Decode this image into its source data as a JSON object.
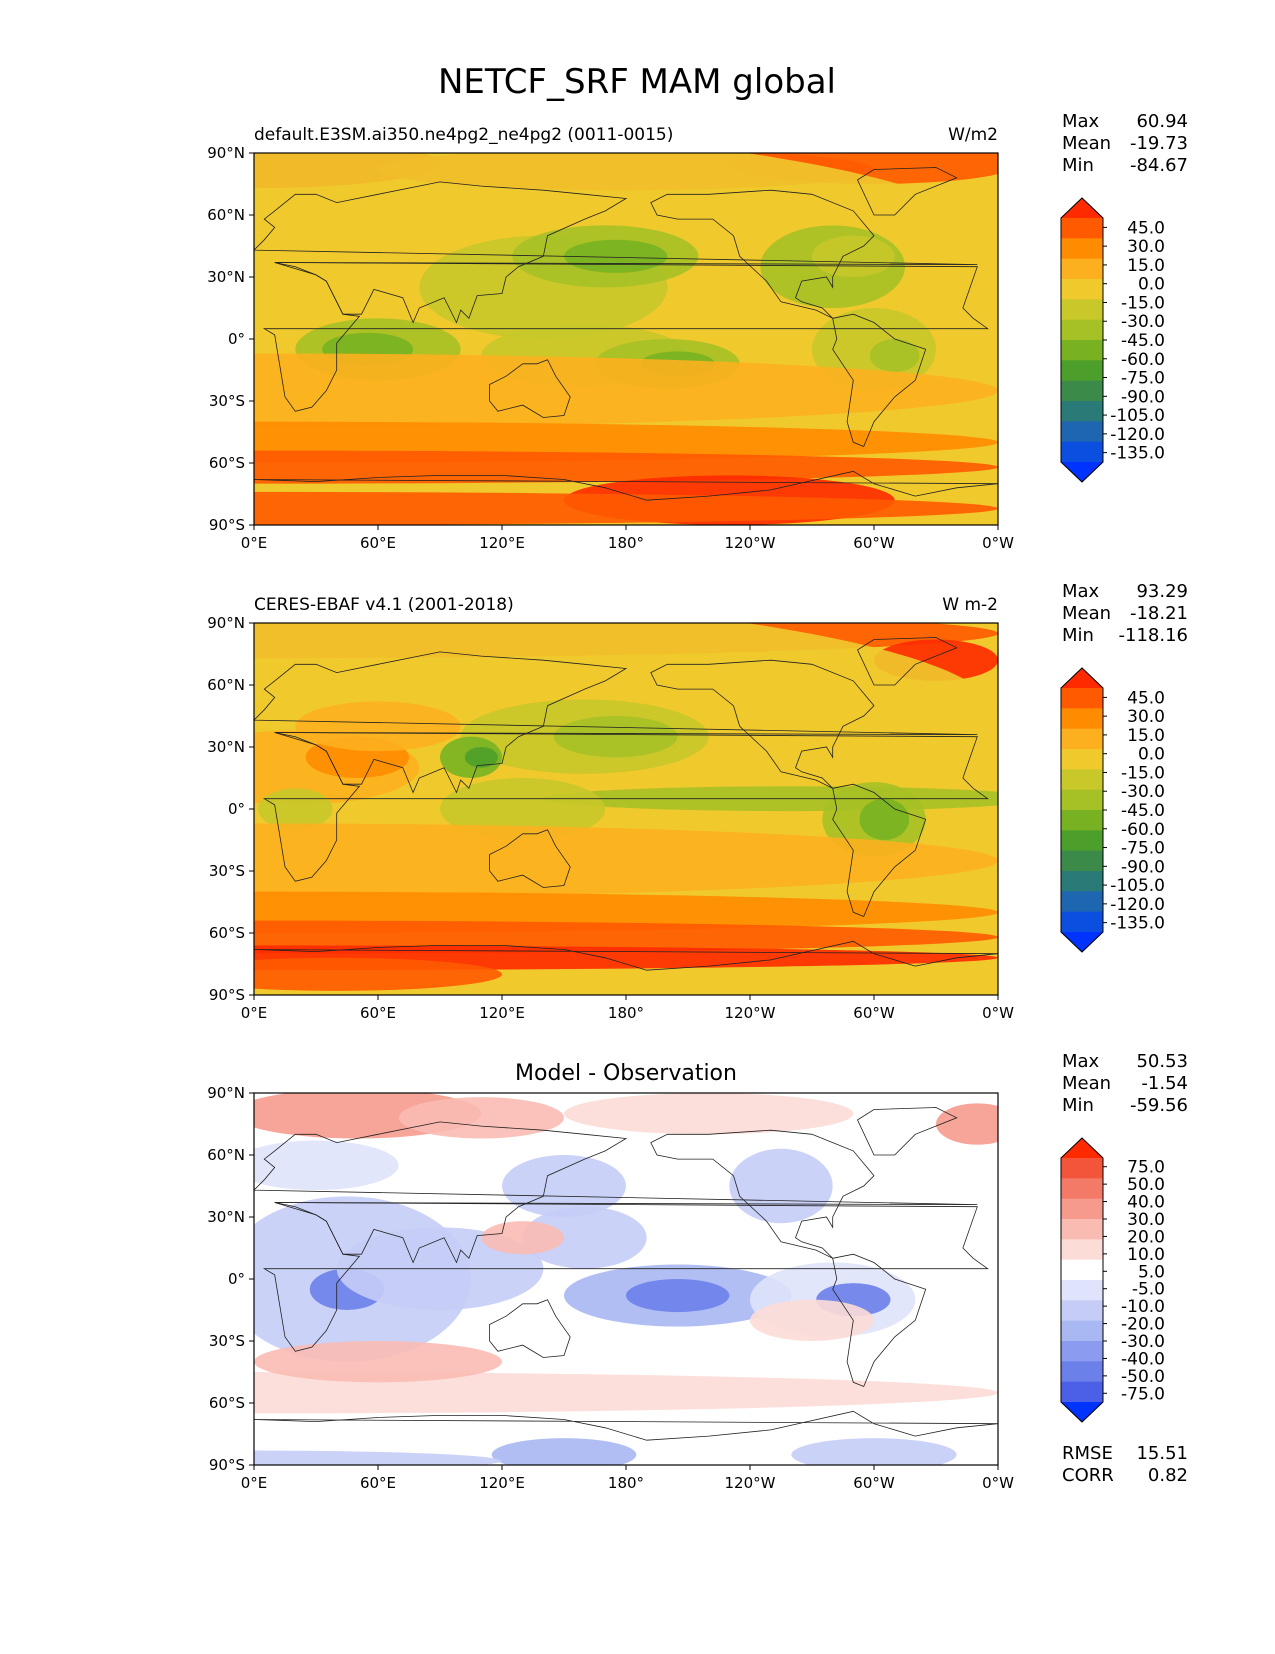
{
  "title": "NETCF_SRF MAM global",
  "x_ticks": [
    "0°E",
    "60°E",
    "120°E",
    "180°",
    "120°W",
    "60°W",
    "0°W"
  ],
  "y_ticks": [
    "90°N",
    "60°N",
    "30°N",
    "0°",
    "30°S",
    "60°S",
    "90°S"
  ],
  "panels": [
    {
      "left_title": "default.E3SM.ai350.ne4pg2_ne4pg2 (0011-0015)",
      "center_title": "",
      "units": "W/m2",
      "stats": [
        {
          "label": "Max",
          "value": "60.94"
        },
        {
          "label": "Mean",
          "value": "-19.73"
        },
        {
          "label": "Min",
          "value": "-84.67"
        }
      ],
      "colorbar_labels": [
        "45.0",
        "30.0",
        "15.0",
        "0.0",
        "-15.0",
        "-30.0",
        "-45.0",
        "-60.0",
        "-75.0",
        "-90.0",
        "-105.0",
        "-120.0",
        "-135.0"
      ],
      "extra_stats": []
    },
    {
      "left_title": "CERES-EBAF v4.1 (2001-2018)",
      "center_title": "",
      "units": "W m-2",
      "stats": [
        {
          "label": "Max",
          "value": "93.29"
        },
        {
          "label": "Mean",
          "value": "-18.21"
        },
        {
          "label": "Min",
          "value": "-118.16"
        }
      ],
      "colorbar_labels": [
        "45.0",
        "30.0",
        "15.0",
        "0.0",
        "-15.0",
        "-30.0",
        "-45.0",
        "-60.0",
        "-75.0",
        "-90.0",
        "-105.0",
        "-120.0",
        "-135.0"
      ],
      "extra_stats": []
    },
    {
      "left_title": "",
      "center_title": "Model - Observation",
      "units": "",
      "stats": [
        {
          "label": "Max",
          "value": "50.53"
        },
        {
          "label": "Mean",
          "value": "-1.54"
        },
        {
          "label": "Min",
          "value": "-59.56"
        }
      ],
      "colorbar_labels": [
        "75.0",
        "50.0",
        "40.0",
        "30.0",
        "20.0",
        "10.0",
        "5.0",
        "-5.0",
        "-10.0",
        "-20.0",
        "-30.0",
        "-40.0",
        "-50.0",
        "-75.0"
      ],
      "extra_stats": [
        {
          "label": "RMSE",
          "value": "15.51"
        },
        {
          "label": "CORR",
          "value": "0.82"
        }
      ]
    }
  ],
  "colors": {
    "field_scale": [
      "#ff2a00",
      "#ff5a00",
      "#ff8c00",
      "#fdb01f",
      "#f0c92d",
      "#c8c82a",
      "#a6c126",
      "#78b222",
      "#4c9f2a",
      "#3b8a4a",
      "#2a7a78",
      "#1f66b0",
      "#0b4fe0",
      "#0033ff"
    ],
    "diff_scale": [
      "#ff2a00",
      "#f2553a",
      "#f47a68",
      "#f69a8e",
      "#f9bbb2",
      "#fcdcd7",
      "#ffffff",
      "#dfe3fb",
      "#c5cdf7",
      "#a9b7f3",
      "#8b9bef",
      "#6c80ea",
      "#4b60e6",
      "#0033ff"
    ]
  }
}
